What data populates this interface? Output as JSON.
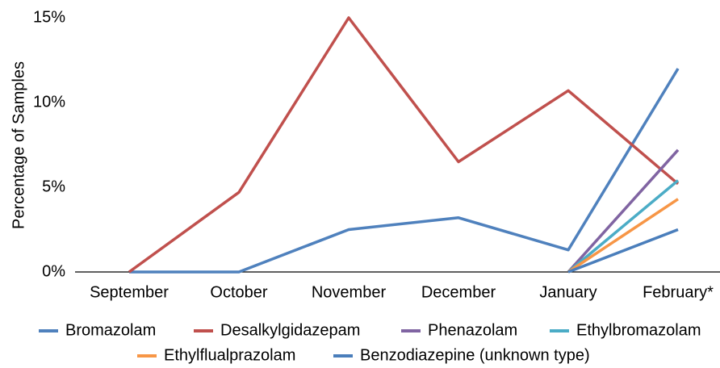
{
  "chart_data": {
    "type": "line",
    "y_label": "Percentage of Samples",
    "categories": [
      "September",
      "October",
      "November",
      "December",
      "January",
      "February*"
    ],
    "series": [
      {
        "name": "Bromazolam",
        "color": "#4f81bd",
        "values": [
          0,
          0,
          2.5,
          3.2,
          1.3,
          12
        ]
      },
      {
        "name": "Desalkylgidazepam",
        "color": "#c0504d",
        "values": [
          0,
          4.7,
          15,
          6.5,
          10.7,
          5.2
        ]
      },
      {
        "name": "Phenazolam",
        "color": "#8064a2",
        "values": [
          null,
          null,
          null,
          null,
          0,
          7.2
        ]
      },
      {
        "name": "Ethylbromazolam",
        "color": "#4bacc6",
        "values": [
          null,
          null,
          null,
          null,
          0,
          5.4
        ]
      },
      {
        "name": "Ethylflualprazolam",
        "color": "#f79646",
        "values": [
          null,
          null,
          null,
          null,
          0,
          4.3
        ]
      },
      {
        "name": "Benzodiazepine (unknown type)",
        "color": "#4a7ebb",
        "values": [
          null,
          null,
          null,
          null,
          0,
          2.5
        ]
      }
    ],
    "ylim": [
      0,
      15
    ],
    "yticks": [
      {
        "value": 0,
        "label": "0%"
      },
      {
        "value": 5,
        "label": "5%"
      },
      {
        "value": 10,
        "label": "10%"
      },
      {
        "value": 15,
        "label": "15%"
      }
    ],
    "grid": false,
    "legend": "bottom"
  }
}
